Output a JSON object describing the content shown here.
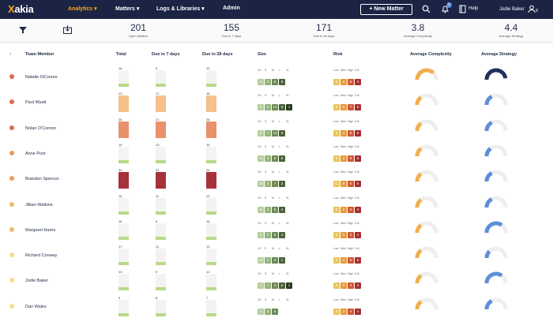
{
  "nav": {
    "brand": "akia",
    "brand_x": "X",
    "items": [
      "Analytics ▾",
      "Matters ▾",
      "Logs & Libraries ▾",
      "Admin"
    ],
    "new_matter": "+ New Matter",
    "notif_count": "1",
    "help": "Help",
    "user": "Jodie Baker",
    "icons": [
      "search-icon",
      "bell-icon",
      "book-icon",
      "user-icon"
    ]
  },
  "toolbar": {
    "icons": [
      "filter-icon",
      "download-icon"
    ]
  },
  "stats": [
    {
      "value": "201",
      "label": "Open Matters"
    },
    {
      "value": "155",
      "label": "Due in 7 days"
    },
    {
      "value": "171",
      "label": "Due in 28 days"
    },
    {
      "value": "3.8",
      "label": "Average Complexity"
    },
    {
      "value": "4.4",
      "label": "Average Strategy"
    }
  ],
  "table": {
    "headers": [
      "↑",
      "Team Member",
      "Total",
      "Due in 7 days",
      "Due in 28 days",
      "Size",
      "Risk",
      "Average Complexity",
      "Average Strategy"
    ],
    "size_labels": [
      "XS",
      "S",
      "M",
      "L",
      "XL"
    ],
    "risk_labels": [
      "Low",
      "Med",
      "High",
      "Crit"
    ],
    "colors": {
      "size": [
        "#b5cf9a",
        "#94b47a",
        "#6e8b57",
        "#4a6236",
        "#2b3a1f"
      ],
      "risk": [
        "#e9c65a",
        "#e89a3e",
        "#d05a35",
        "#a82d2d"
      ],
      "complexity": "#f0b04e",
      "strategy": "#5d8ed8",
      "strategy_dark": "#22305a"
    },
    "rows": [
      {
        "name": "Natalie OConnor",
        "dot": "#e06a4e",
        "total": "16",
        "d7": "9",
        "d28": "12",
        "t": 0.3,
        "a": 0.28,
        "b": 0.35,
        "size": [
          "1",
          "2",
          "5",
          "8",
          ""
        ],
        "risk": [
          "3",
          "4",
          "6",
          "3"
        ],
        "cx": 0.75,
        "st": 0.95
      },
      {
        "name": "Paul Wyatt",
        "dot": "#e06a4e",
        "total": "23",
        "d7": "17",
        "d28": "18",
        "t": 0.6,
        "a": 0.6,
        "b": 0.55,
        "size": [
          "5",
          "5",
          "13",
          "8",
          "1"
        ],
        "risk": [
          "4",
          "5",
          "7",
          "6"
        ],
        "cx": 0.3,
        "st": 0.35
      },
      {
        "name": "Nolan O'Connor",
        "dot": "#e06a4e",
        "total": "26",
        "d7": "21",
        "d28": "26",
        "t": 0.85,
        "a": 0.8,
        "b": 0.85,
        "size": [
          "3",
          "7",
          "13",
          "8",
          ""
        ],
        "risk": [
          "3",
          "4",
          "6",
          "6"
        ],
        "cx": 0.3,
        "st": 0.35
      },
      {
        "name": "Anne Post",
        "dot": "#f09a5a",
        "total": "15",
        "d7": "13",
        "d28": "15",
        "t": 0.3,
        "a": 0.4,
        "b": 0.35,
        "size": [
          "3",
          "4",
          "6",
          "8",
          ""
        ],
        "risk": [
          "3",
          "4",
          "6",
          "6"
        ],
        "cx": 0.3,
        "st": 0.3
      },
      {
        "name": "Brandon Spencer",
        "dot": "#f09a5a",
        "total": "34",
        "d7": "32",
        "d28": "34",
        "t": 1,
        "a": 1,
        "b": 1,
        "size": [
          "10",
          "4",
          "7",
          "3",
          ""
        ],
        "risk": [
          "11",
          "6",
          "6",
          "6"
        ],
        "cx": 0.3,
        "st": 0.35
      },
      {
        "name": "Jillian Watkins",
        "dot": "#f2b86a",
        "total": "16",
        "d7": "11",
        "d28": "12",
        "t": 0.3,
        "a": 0.3,
        "b": 0.3,
        "size": [
          "5",
          "3",
          "5",
          "4",
          ""
        ],
        "risk": [
          "8",
          "2",
          "3",
          "4"
        ],
        "cx": 0.3,
        "st": 0.35
      },
      {
        "name": "Margaret Harris",
        "dot": "#f2b86a",
        "total": "16",
        "d7": "8",
        "d28": "16",
        "t": 0.3,
        "a": 0.2,
        "b": 0.3,
        "size": [
          "1",
          "2",
          "5",
          "4",
          ""
        ],
        "risk": [
          "2",
          "3",
          "3",
          "4"
        ],
        "cx": 0.3,
        "st": 0.7
      },
      {
        "name": "Richard Conway",
        "dot": "#f7dd8a",
        "total": "17",
        "d7": "11",
        "d28": "13",
        "t": 0.3,
        "a": 0.3,
        "b": 0.3,
        "size": [
          "10",
          "2",
          "4",
          "1",
          ""
        ],
        "risk": [
          "2",
          "4",
          "5",
          "5"
        ],
        "cx": 0.3,
        "st": 0.25
      },
      {
        "name": "Jodie Baker",
        "dot": "#f7dd8a",
        "total": "10",
        "d7": "9",
        "d28": "12",
        "t": 0.2,
        "a": 0.28,
        "b": 0.3,
        "size": [
          "1",
          "1",
          "3",
          "5",
          "1"
        ],
        "risk": [
          "2",
          "3",
          "3",
          "3"
        ],
        "cx": 0.3,
        "st": 0.7
      },
      {
        "name": "Dan Wales",
        "dot": "#f7dd8a",
        "total": "9",
        "d7": "8",
        "d28": "7",
        "t": 0.2,
        "a": 0.2,
        "b": 0.2,
        "size": [
          "1",
          "4",
          "6",
          "",
          ""
        ],
        "risk": [
          "3",
          "3",
          "3",
          "4"
        ],
        "cx": 0.3,
        "st": 0.35
      }
    ]
  }
}
